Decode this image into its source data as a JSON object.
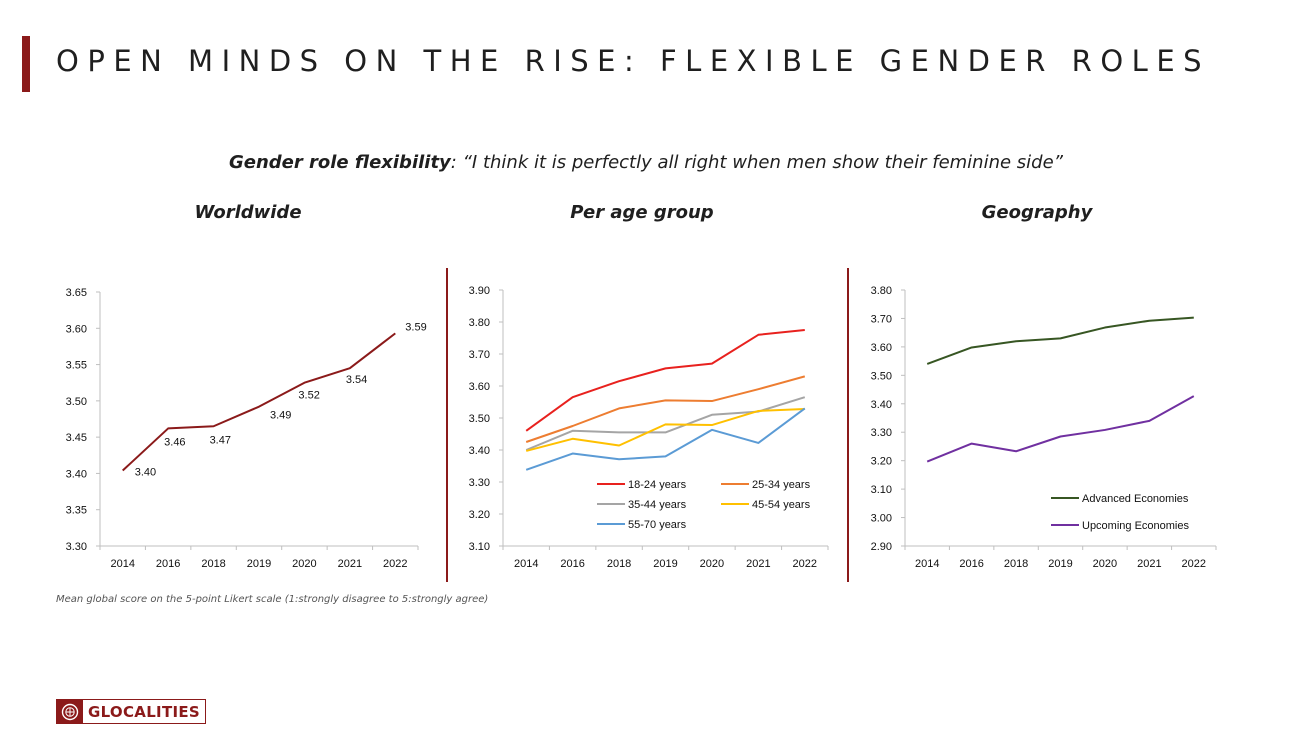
{
  "header": {
    "title": "OPEN MINDS ON THE RISE: FLEXIBLE GENDER ROLES",
    "subtitle_bold": "Gender role flexibility",
    "subtitle_rest": ": “I think it is perfectly all right when men show their feminine side”"
  },
  "sections": {
    "worldwide": "Worldwide",
    "age": "Per age group",
    "geo": "Geography"
  },
  "footnote": "Mean global score on the 5-point Likert scale (1:strongly disagree to 5:strongly agree)",
  "logo": {
    "text": "GLOCALITIES",
    "icon": "globe-seal-icon"
  },
  "colors": {
    "accent": "#8b1a1a"
  },
  "chart_data": [
    {
      "type": "line",
      "title": "Worldwide",
      "categories": [
        "2014",
        "2016",
        "2018",
        "2019",
        "2020",
        "2021",
        "2022"
      ],
      "ylim": [
        3.3,
        3.65
      ],
      "yticks": [
        "3.30",
        "3.35",
        "3.40",
        "3.45",
        "3.50",
        "3.55",
        "3.60",
        "3.65"
      ],
      "series": [
        {
          "color": "#8b1a1a",
          "values": [
            3.404,
            3.462,
            3.465,
            3.492,
            3.525,
            3.545,
            3.593
          ],
          "labels": [
            "3.40",
            "3.46",
            "3.47",
            "3.49",
            "3.52",
            "3.54",
            "3.59"
          ]
        }
      ],
      "legend": null
    },
    {
      "type": "line",
      "title": "Per age group",
      "categories": [
        "2014",
        "2016",
        "2018",
        "2019",
        "2020",
        "2021",
        "2022"
      ],
      "ylim": [
        3.1,
        3.9
      ],
      "yticks": [
        "3.10",
        "3.20",
        "3.30",
        "3.40",
        "3.50",
        "3.60",
        "3.70",
        "3.80",
        "3.90"
      ],
      "series": [
        {
          "name": "18-24 years",
          "color": "#e8211e",
          "values": [
            3.46,
            3.565,
            3.615,
            3.655,
            3.67,
            3.76,
            3.775
          ]
        },
        {
          "name": "25-34 years",
          "color": "#ed7d31",
          "values": [
            3.425,
            3.475,
            3.53,
            3.555,
            3.553,
            3.59,
            3.63
          ]
        },
        {
          "name": "35-44 years",
          "color": "#a5a5a5",
          "values": [
            3.4,
            3.46,
            3.455,
            3.455,
            3.51,
            3.52,
            3.565
          ]
        },
        {
          "name": "45-54 years",
          "color": "#ffc000",
          "values": [
            3.397,
            3.435,
            3.414,
            3.48,
            3.478,
            3.522,
            3.528
          ]
        },
        {
          "name": "55-70 years",
          "color": "#5b9bd5",
          "values": [
            3.338,
            3.389,
            3.371,
            3.38,
            3.463,
            3.422,
            3.53
          ]
        }
      ],
      "legend": "bottom-right"
    },
    {
      "type": "line",
      "title": "Geography",
      "categories": [
        "2014",
        "2016",
        "2018",
        "2019",
        "2020",
        "2021",
        "2022"
      ],
      "ylim": [
        2.9,
        3.8
      ],
      "yticks": [
        "2.90",
        "3.00",
        "3.10",
        "3.20",
        "3.30",
        "3.40",
        "3.50",
        "3.60",
        "3.70",
        "3.80"
      ],
      "series": [
        {
          "name": "Advanced Economies",
          "color": "#375623",
          "values": [
            3.54,
            3.598,
            3.62,
            3.63,
            3.668,
            3.692,
            3.703
          ]
        },
        {
          "name": "Upcoming Economies",
          "color": "#7030a0",
          "values": [
            3.197,
            3.26,
            3.233,
            3.285,
            3.308,
            3.34,
            3.427
          ]
        }
      ],
      "legend": "bottom-right"
    }
  ]
}
